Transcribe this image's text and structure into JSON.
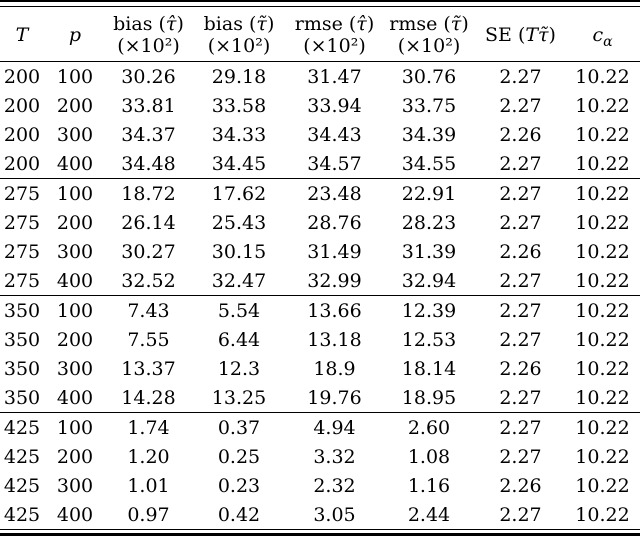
{
  "colors": {
    "text": "#000000",
    "background": "#ffffff",
    "rule": "#000000"
  },
  "table": {
    "headers": [
      {
        "key": "T",
        "var": "T"
      },
      {
        "key": "p",
        "var": "p"
      },
      {
        "key": "bias_hat",
        "pre": "bias (",
        "var": "τ̂",
        "post": ")",
        "l2": "(×10²)"
      },
      {
        "key": "bias_tilde",
        "pre": "bias (",
        "var": "τ̃",
        "post": ")",
        "l2": "(×10²)"
      },
      {
        "key": "rmse_hat",
        "pre": "rmse (",
        "var": "τ̂",
        "post": ")",
        "l2": "(×10²)"
      },
      {
        "key": "rmse_tilde",
        "pre": "rmse (",
        "var": "τ̃",
        "post": ")",
        "l2": "(×10²)"
      },
      {
        "key": "se",
        "pre": "SE (",
        "var": "Tτ̃",
        "post": ")"
      },
      {
        "key": "c_alpha",
        "var": "c",
        "sub": "α"
      }
    ],
    "groups": [
      {
        "T": "200",
        "rows": [
          [
            "200",
            "100",
            "30.26",
            "29.18",
            "31.47",
            "30.76",
            "2.27",
            "10.22"
          ],
          [
            "200",
            "200",
            "33.81",
            "33.58",
            "33.94",
            "33.75",
            "2.27",
            "10.22"
          ],
          [
            "200",
            "300",
            "34.37",
            "34.33",
            "34.43",
            "34.39",
            "2.26",
            "10.22"
          ],
          [
            "200",
            "400",
            "34.48",
            "34.45",
            "34.57",
            "34.55",
            "2.27",
            "10.22"
          ]
        ]
      },
      {
        "T": "275",
        "rows": [
          [
            "275",
            "100",
            "18.72",
            "17.62",
            "23.48",
            "22.91",
            "2.27",
            "10.22"
          ],
          [
            "275",
            "200",
            "26.14",
            "25.43",
            "28.76",
            "28.23",
            "2.27",
            "10.22"
          ],
          [
            "275",
            "300",
            "30.27",
            "30.15",
            "31.49",
            "31.39",
            "2.26",
            "10.22"
          ],
          [
            "275",
            "400",
            "32.52",
            "32.47",
            "32.99",
            "32.94",
            "2.27",
            "10.22"
          ]
        ]
      },
      {
        "T": "350",
        "rows": [
          [
            "350",
            "100",
            "7.43",
            "5.54",
            "13.66",
            "12.39",
            "2.27",
            "10.22"
          ],
          [
            "350",
            "200",
            "7.55",
            "6.44",
            "13.18",
            "12.53",
            "2.27",
            "10.22"
          ],
          [
            "350",
            "300",
            "13.37",
            "12.3",
            "18.9",
            "18.14",
            "2.26",
            "10.22"
          ],
          [
            "350",
            "400",
            "14.28",
            "13.25",
            "19.76",
            "18.95",
            "2.27",
            "10.22"
          ]
        ]
      },
      {
        "T": "425",
        "rows": [
          [
            "425",
            "100",
            "1.74",
            "0.37",
            "4.94",
            "2.60",
            "2.27",
            "10.22"
          ],
          [
            "425",
            "200",
            "1.20",
            "0.25",
            "3.32",
            "1.08",
            "2.27",
            "10.22"
          ],
          [
            "425",
            "300",
            "1.01",
            "0.23",
            "2.32",
            "1.16",
            "2.26",
            "10.22"
          ],
          [
            "425",
            "400",
            "0.97",
            "0.42",
            "3.05",
            "2.44",
            "2.27",
            "10.22"
          ]
        ]
      }
    ]
  }
}
